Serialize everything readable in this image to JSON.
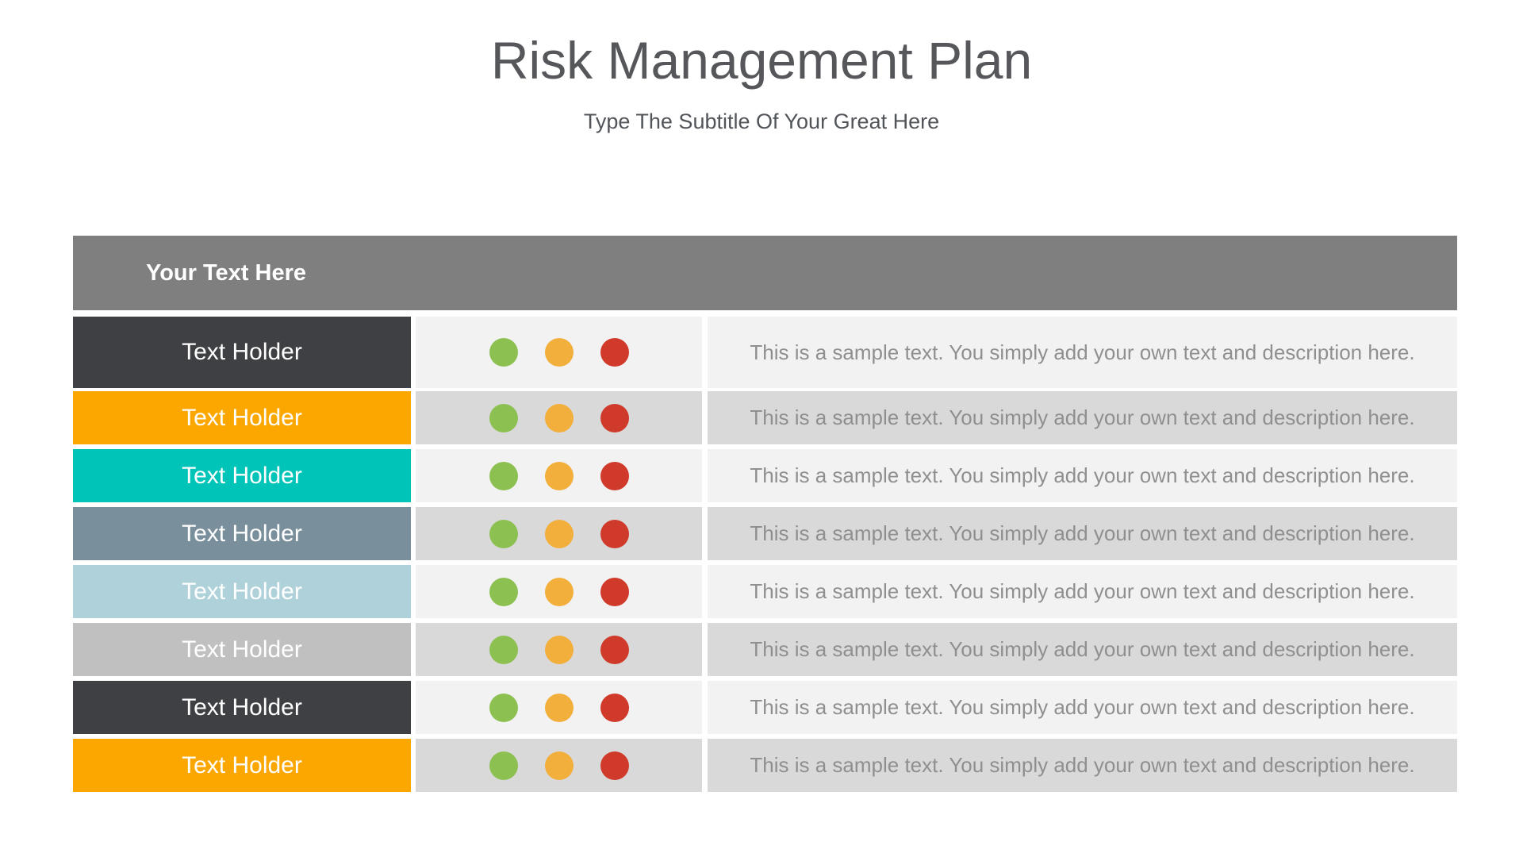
{
  "slide": {
    "title": "Risk Management Plan",
    "subtitle": "Type The Subtitle Of Your Great Here"
  },
  "colors": {
    "header_bg": "#7F7F7F",
    "stripe_light": "#F2F2F2",
    "stripe_dark": "#D9D9D9",
    "title_text": "#56575B",
    "description_text": "#8F8F8F",
    "dots": {
      "green": "#8CC152",
      "amber": "#F2AF3C",
      "red": "#D03A2B"
    }
  },
  "table": {
    "header_label": "Your Text Here",
    "rows": [
      {
        "label": "Text Holder",
        "label_bg": "#3F4043",
        "stripe": "light",
        "dots": [
          "green",
          "amber",
          "red"
        ],
        "description": "This is a sample text. You simply add your own text and description here."
      },
      {
        "label": "Text Holder",
        "label_bg": "#FBA700",
        "stripe": "dark",
        "dots": [
          "green",
          "amber",
          "red"
        ],
        "description": "This is a sample text. You simply add your own text and description here."
      },
      {
        "label": "Text Holder",
        "label_bg": "#00C4B8",
        "stripe": "light",
        "dots": [
          "green",
          "amber",
          "red"
        ],
        "description": "This is a sample text. You simply add your own text and description here."
      },
      {
        "label": "Text Holder",
        "label_bg": "#798F9B",
        "stripe": "dark",
        "dots": [
          "green",
          "amber",
          "red"
        ],
        "description": "This is a sample text. You simply add your own text and description here."
      },
      {
        "label": "Text Holder",
        "label_bg": "#AFD1D9",
        "stripe": "light",
        "dots": [
          "green",
          "amber",
          "red"
        ],
        "description": "This is a sample text. You simply add your own text and description here."
      },
      {
        "label": "Text Holder",
        "label_bg": "#C0C0C0",
        "stripe": "dark",
        "dots": [
          "green",
          "amber",
          "red"
        ],
        "description": "This is a sample text. You simply add your own text and description here."
      },
      {
        "label": "Text Holder",
        "label_bg": "#3F4043",
        "stripe": "light",
        "dots": [
          "green",
          "amber",
          "red"
        ],
        "description": "This is a sample text. You simply add your own text and description here."
      },
      {
        "label": "Text Holder",
        "label_bg": "#FBA700",
        "stripe": "dark",
        "dots": [
          "green",
          "amber",
          "red"
        ],
        "description": "This is a sample text. You simply add your own text and description here."
      }
    ]
  }
}
